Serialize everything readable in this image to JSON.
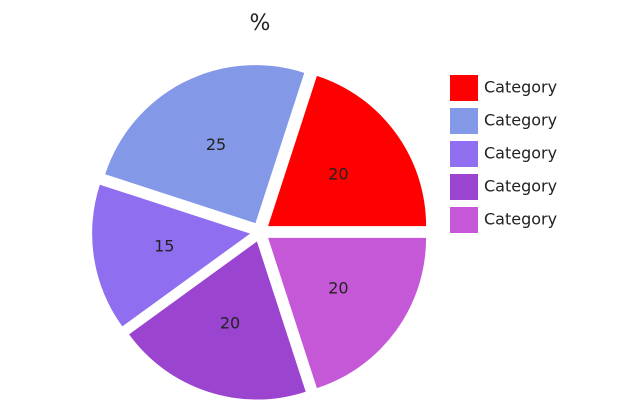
{
  "chart_data": {
    "type": "pie",
    "title": "%",
    "categories": [
      "Category",
      "Category",
      "Category",
      "Category",
      "Category"
    ],
    "values": [
      20,
      25,
      15,
      20,
      20
    ],
    "colors": [
      "#ff0000",
      "#8399e8",
      "#8f6ef0",
      "#9b44d0",
      "#c458d6"
    ],
    "legend": "right"
  }
}
